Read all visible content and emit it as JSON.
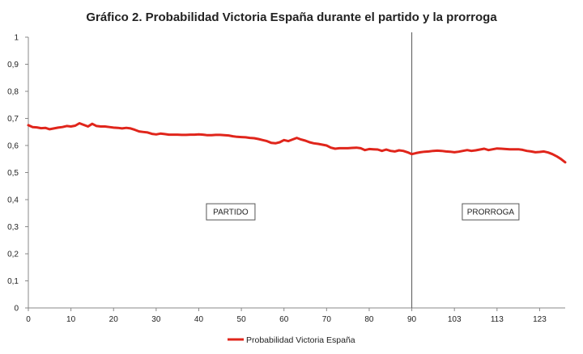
{
  "chart_data": {
    "type": "line",
    "title": "Gráfico 2. Probabilidad Victoria España durante el partido y la prorroga",
    "xlabel": "",
    "ylabel": "",
    "ylim": [
      0,
      1
    ],
    "yticks": [
      "0",
      "0,1",
      "0,2",
      "0,3",
      "0,4",
      "0,5",
      "0,6",
      "0,7",
      "0,8",
      "0,9",
      "1"
    ],
    "xticks": [
      "0",
      "10",
      "20",
      "30",
      "40",
      "50",
      "60",
      "70",
      "80",
      "90",
      "103",
      "113",
      "123"
    ],
    "grid": false,
    "legend_position": "bottom",
    "divider_at": "90",
    "annotations": [
      "PARTIDO",
      "PRORROGA"
    ],
    "colors": {
      "series": "#e0251b",
      "axis": "#888888",
      "divider": "#555555"
    },
    "series": [
      {
        "name": "Probabilidad Victoria España",
        "points": [
          [
            0,
            0.675
          ],
          [
            1,
            0.668
          ],
          [
            2,
            0.667
          ],
          [
            3,
            0.664
          ],
          [
            4,
            0.665
          ],
          [
            5,
            0.66
          ],
          [
            6,
            0.663
          ],
          [
            7,
            0.666
          ],
          [
            8,
            0.668
          ],
          [
            9,
            0.672
          ],
          [
            10,
            0.67
          ],
          [
            11,
            0.673
          ],
          [
            12,
            0.682
          ],
          [
            13,
            0.676
          ],
          [
            14,
            0.67
          ],
          [
            15,
            0.68
          ],
          [
            16,
            0.672
          ],
          [
            17,
            0.67
          ],
          [
            18,
            0.67
          ],
          [
            19,
            0.668
          ],
          [
            20,
            0.666
          ],
          [
            21,
            0.665
          ],
          [
            22,
            0.663
          ],
          [
            23,
            0.665
          ],
          [
            24,
            0.663
          ],
          [
            25,
            0.658
          ],
          [
            26,
            0.652
          ],
          [
            27,
            0.65
          ],
          [
            28,
            0.648
          ],
          [
            29,
            0.643
          ],
          [
            30,
            0.641
          ],
          [
            31,
            0.644
          ],
          [
            32,
            0.642
          ],
          [
            33,
            0.64
          ],
          [
            34,
            0.64
          ],
          [
            35,
            0.64
          ],
          [
            36,
            0.639
          ],
          [
            37,
            0.639
          ],
          [
            38,
            0.64
          ],
          [
            39,
            0.64
          ],
          [
            40,
            0.641
          ],
          [
            41,
            0.64
          ],
          [
            42,
            0.638
          ],
          [
            43,
            0.638
          ],
          [
            44,
            0.639
          ],
          [
            45,
            0.639
          ],
          [
            46,
            0.638
          ],
          [
            47,
            0.637
          ],
          [
            48,
            0.634
          ],
          [
            49,
            0.632
          ],
          [
            50,
            0.631
          ],
          [
            51,
            0.63
          ],
          [
            52,
            0.628
          ],
          [
            53,
            0.627
          ],
          [
            54,
            0.624
          ],
          [
            55,
            0.62
          ],
          [
            56,
            0.616
          ],
          [
            57,
            0.61
          ],
          [
            58,
            0.608
          ],
          [
            59,
            0.612
          ],
          [
            60,
            0.62
          ],
          [
            61,
            0.616
          ],
          [
            62,
            0.622
          ],
          [
            63,
            0.628
          ],
          [
            64,
            0.622
          ],
          [
            65,
            0.618
          ],
          [
            66,
            0.612
          ],
          [
            67,
            0.608
          ],
          [
            68,
            0.606
          ],
          [
            69,
            0.603
          ],
          [
            70,
            0.6
          ],
          [
            71,
            0.592
          ],
          [
            72,
            0.588
          ],
          [
            73,
            0.59
          ],
          [
            74,
            0.59
          ],
          [
            75,
            0.59
          ],
          [
            76,
            0.591
          ],
          [
            77,
            0.592
          ],
          [
            78,
            0.59
          ],
          [
            79,
            0.583
          ],
          [
            80,
            0.587
          ],
          [
            81,
            0.586
          ],
          [
            82,
            0.585
          ],
          [
            83,
            0.58
          ],
          [
            84,
            0.585
          ],
          [
            85,
            0.58
          ],
          [
            86,
            0.578
          ],
          [
            87,
            0.582
          ],
          [
            88,
            0.58
          ],
          [
            89,
            0.575
          ],
          [
            90,
            0.568
          ],
          [
            91,
            0.572
          ],
          [
            92,
            0.575
          ],
          [
            93,
            0.577
          ],
          [
            94,
            0.578
          ],
          [
            95,
            0.58
          ],
          [
            96,
            0.581
          ],
          [
            97,
            0.58
          ],
          [
            98,
            0.578
          ],
          [
            99,
            0.577
          ],
          [
            100,
            0.575
          ],
          [
            101,
            0.577
          ],
          [
            102,
            0.58
          ],
          [
            103,
            0.583
          ],
          [
            104,
            0.58
          ],
          [
            105,
            0.582
          ],
          [
            106,
            0.585
          ],
          [
            107,
            0.588
          ],
          [
            108,
            0.583
          ],
          [
            109,
            0.586
          ],
          [
            110,
            0.589
          ],
          [
            111,
            0.588
          ],
          [
            112,
            0.587
          ],
          [
            113,
            0.586
          ],
          [
            114,
            0.586
          ],
          [
            115,
            0.586
          ],
          [
            116,
            0.584
          ],
          [
            117,
            0.58
          ],
          [
            118,
            0.578
          ],
          [
            119,
            0.575
          ],
          [
            120,
            0.576
          ],
          [
            121,
            0.578
          ],
          [
            122,
            0.574
          ],
          [
            123,
            0.568
          ],
          [
            124,
            0.56
          ],
          [
            125,
            0.55
          ],
          [
            126,
            0.538
          ]
        ]
      }
    ]
  }
}
